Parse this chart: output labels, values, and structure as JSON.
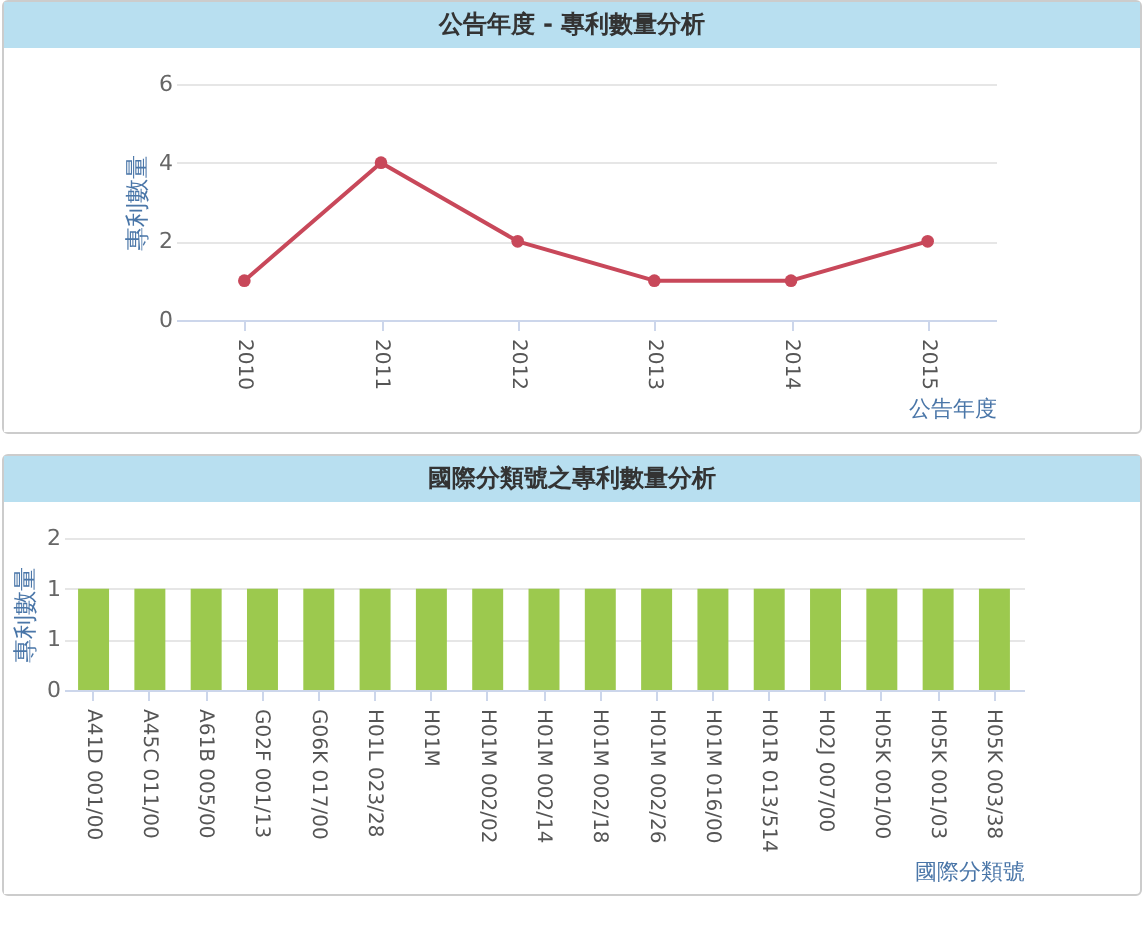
{
  "chart_data": [
    {
      "type": "line",
      "title": "公告年度 - 專利數量分析",
      "xlabel": "公告年度",
      "ylabel": "專利數量",
      "categories": [
        "2010",
        "2011",
        "2012",
        "2013",
        "2014",
        "2015"
      ],
      "series": [
        {
          "color": "#c8485a",
          "values": [
            1,
            4,
            2,
            1,
            1,
            2
          ]
        }
      ],
      "ylim": [
        0,
        6
      ],
      "yticks": [
        0,
        2,
        4,
        6
      ],
      "grid": "y",
      "marker": "circle"
    },
    {
      "type": "bar",
      "title": "國際分類號之專利數量分析",
      "xlabel": "國際分類號",
      "ylabel": "專利數量",
      "categories": [
        "A41D 001/00",
        "A45C 011/00",
        "A61B 005/00",
        "G02F 001/13",
        "G06K 017/00",
        "H01L 023/28",
        "H01M",
        "H01M 002/02",
        "H01M 002/14",
        "H01M 002/18",
        "H01M 002/26",
        "H01M 016/00",
        "H01R 013/514",
        "H02J 007/00",
        "H05K 001/00",
        "H05K 001/03",
        "H05K 003/38"
      ],
      "series": [
        {
          "color": "#9cc94e",
          "values": [
            1,
            1,
            1,
            1,
            1,
            1,
            1,
            1,
            1,
            1,
            1,
            1,
            1,
            1,
            1,
            1,
            1
          ]
        }
      ],
      "ylim": [
        0,
        1.5
      ],
      "yticks": [
        0,
        {
          "value": 0.5,
          "label": "1"
        },
        1,
        {
          "value": 1.5,
          "label": "2"
        }
      ],
      "grid": "y"
    }
  ]
}
